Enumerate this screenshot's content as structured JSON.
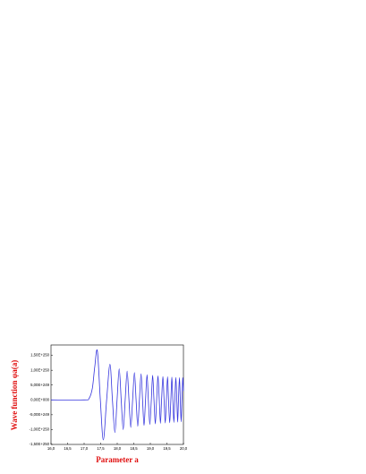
{
  "chart_data": {
    "type": "line",
    "x_label": "Parameter a",
    "y_label": "Wave function  φa(a)",
    "x": [
      16.0,
      17.0,
      17.15,
      17.25,
      17.32,
      17.4,
      17.49,
      17.58,
      17.68,
      17.78,
      17.855,
      17.93,
      17.995,
      18.06,
      18.12,
      18.18,
      18.24,
      18.3,
      18.355,
      18.41,
      18.465,
      18.52,
      18.57,
      18.62,
      18.67,
      18.72,
      18.765,
      18.81,
      18.855,
      18.9,
      18.94,
      18.985,
      19.03,
      19.07,
      19.11,
      19.15,
      19.19,
      19.23,
      19.27,
      19.305,
      19.34,
      19.38,
      19.415,
      19.45,
      19.485,
      19.52,
      19.55,
      19.585,
      19.62,
      19.65,
      19.68,
      19.71,
      19.74,
      19.77,
      19.8,
      19.825,
      19.85,
      19.88,
      19.905,
      19.93,
      19.955,
      19.98,
      20.0
    ],
    "series": [
      {
        "color": "#3333dd",
        "values": [
          0,
          0,
          5e+248,
          4e+249,
          1.1e+250,
          1.65e+250,
          0,
          -1.35e+250,
          0,
          1.2e+250,
          0,
          -1.1e+250,
          0,
          1.05e+250,
          0,
          -1e+250,
          0,
          9.7e+249,
          0,
          -9.3e+249,
          0,
          9.2e+249,
          0,
          -8.9e+249,
          0,
          8.8e+249,
          0,
          -8.6e+249,
          0,
          8.5e+249,
          0,
          -8.3e+249,
          0,
          8.3e+249,
          0,
          -8.1e+249,
          0,
          8.1e+249,
          0,
          -7.9e+249,
          0,
          7.9e+249,
          0,
          -7.8e+249,
          0,
          7.8e+249,
          0,
          -7.7e+249,
          0,
          7.7e+249,
          0,
          -7.6e+249,
          0,
          7.6e+249,
          0,
          -7.5e+249,
          0,
          7.5e+249,
          0,
          -7.4e+249,
          0,
          7.4e+249,
          3e+249
        ]
      }
    ],
    "xlim": [
      16.0,
      20.0
    ],
    "xticks": [
      {
        "value": 16.0,
        "label": "16,0"
      },
      {
        "value": 16.5,
        "label": "16,5"
      },
      {
        "value": 17.0,
        "label": "17,0"
      },
      {
        "value": 17.5,
        "label": "17,5"
      },
      {
        "value": 18.0,
        "label": "18,0"
      },
      {
        "value": 18.5,
        "label": "18,5"
      },
      {
        "value": 19.0,
        "label": "19,0"
      },
      {
        "value": 19.5,
        "label": "19,5"
      },
      {
        "value": 20.0,
        "label": "20,0"
      }
    ],
    "ylim": [
      -1.5e+250,
      1.85e+250
    ],
    "yticks": [
      {
        "value": -1.5e+250,
        "label": "-1,50E+250"
      },
      {
        "value": -1e+250,
        "label": "-1,00E+250"
      },
      {
        "value": -5e+249,
        "label": "-5,00E+249"
      },
      {
        "value": 0,
        "label": "0,00E+000"
      },
      {
        "value": 5e+249,
        "label": "5,00E+249"
      },
      {
        "value": 1e+250,
        "label": "1,00E+250"
      },
      {
        "value": 1.5e+250,
        "label": "1,50E+250"
      }
    ]
  }
}
